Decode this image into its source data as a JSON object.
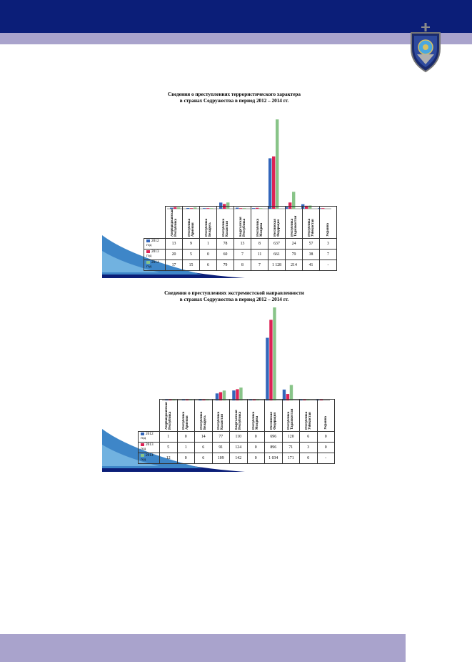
{
  "colors": {
    "header": "#0b1e78",
    "stripe": "#a9a3cc",
    "series": [
      "#3366bb",
      "#dd2255",
      "#88c488"
    ]
  },
  "logo": {
    "name": "emblem-shield-icon"
  },
  "chart_data": [
    {
      "type": "bar",
      "title": "Сведения о преступлениях террористического характера\nв странах Содружества в период 2012 – 2014 гг.",
      "categories": [
        "Азербайджанская Республика",
        "Республика Армения",
        "Республика Беларусь",
        "Республика Казахстан",
        "Кыргызская Республика",
        "Республика Молдова",
        "Российская Федерация",
        "Республика Таджикистан",
        "Республика Узбекистан",
        "Украина"
      ],
      "series": [
        {
          "name": "2012 год",
          "values": [
            13,
            9,
            1,
            78,
            13,
            8,
            637,
            24,
            57,
            3
          ],
          "labels": [
            "13",
            "9",
            "1",
            "78",
            "13",
            "8",
            "637",
            "24",
            "57",
            "3"
          ]
        },
        {
          "name": "2013 год",
          "values": [
            20,
            5,
            0,
            60,
            7,
            11,
            661,
            79,
            38,
            7
          ],
          "labels": [
            "20",
            "5",
            "0",
            "60",
            "7",
            "11",
            "661",
            "79",
            "38",
            "7"
          ]
        },
        {
          "name": "2014 год",
          "values": [
            17,
            15,
            6,
            79,
            8,
            7,
            1128,
            214,
            41,
            null
          ],
          "labels": [
            "17",
            "15",
            "6",
            "79",
            "8",
            "7",
            "1 128",
            "214",
            "41",
            "-"
          ]
        }
      ]
    },
    {
      "type": "bar",
      "title": "Сведения о преступлениях экстремистской направленности\nв странах Содружества в период 2012 – 2014 гг.",
      "categories": [
        "Азербайджанская Республика",
        "Республика Армения",
        "Республика Беларусь",
        "Республика Казахстан",
        "Кыргызская Республика",
        "Республика Молдова",
        "Российская Федерация",
        "Республика Таджикистан",
        "Республика Узбекистан",
        "Украина"
      ],
      "series": [
        {
          "name": "2012 год",
          "values": [
            1,
            0,
            14,
            77,
            110,
            0,
            696,
            120,
            6,
            0
          ],
          "labels": [
            "1",
            "0",
            "14",
            "77",
            "110",
            "0",
            "696",
            "120",
            "6",
            "0"
          ]
        },
        {
          "name": "2013 год",
          "values": [
            5,
            1,
            6,
            91,
            124,
            0,
            896,
            71,
            3,
            0
          ],
          "labels": [
            "5",
            "1",
            "6",
            "91",
            "124",
            "0",
            "896",
            "71",
            "3",
            "0"
          ]
        },
        {
          "name": "2014 год",
          "values": [
            12,
            0,
            6,
            109,
            142,
            0,
            1034,
            171,
            0,
            null
          ],
          "labels": [
            "12",
            "0",
            "6",
            "109",
            "142",
            "0",
            "1 034",
            "171",
            "0",
            "-"
          ]
        }
      ]
    }
  ]
}
